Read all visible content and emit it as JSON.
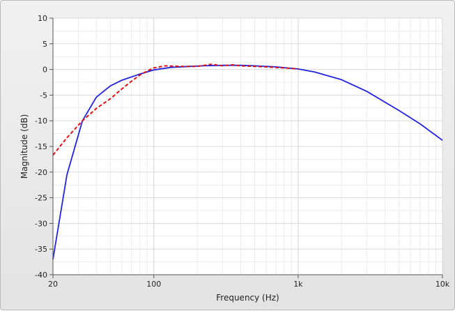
{
  "chart_data": {
    "type": "line",
    "title": "",
    "xlabel": "Frequency (Hz)",
    "ylabel": "Magnitude (dB)",
    "xscale": "log",
    "xlim": [
      20,
      10000
    ],
    "ylim": [
      -40,
      10
    ],
    "xticks": [
      {
        "value": 20,
        "label": "20"
      },
      {
        "value": 100,
        "label": "100"
      },
      {
        "value": 1000,
        "label": "1k"
      },
      {
        "value": 10000,
        "label": "10k"
      }
    ],
    "yticks": [
      10,
      5,
      0,
      -5,
      -10,
      -15,
      -20,
      -25,
      -30,
      -35,
      -40
    ],
    "grid": true,
    "legend": "none",
    "series": [
      {
        "color": "#2222dd",
        "style": "solid",
        "x": [
          20,
          25,
          32,
          40,
          50,
          60,
          80,
          100,
          130,
          180,
          220,
          300,
          400,
          500,
          700,
          1000,
          1300,
          2000,
          3000,
          5000,
          7000,
          10000
        ],
        "y": [
          -37,
          -20.5,
          -10,
          -5.4,
          -3.2,
          -2.1,
          -0.9,
          -0.1,
          0.4,
          0.6,
          0.7,
          0.8,
          0.8,
          0.7,
          0.5,
          0.1,
          -0.5,
          -2.0,
          -4.3,
          -8.0,
          -10.6,
          -13.8
        ]
      },
      {
        "color": "#dd1111",
        "style": "dashed",
        "x": [
          20,
          25,
          32,
          40,
          50,
          60,
          70,
          80,
          90,
          100,
          120,
          150,
          200,
          250,
          300,
          350,
          400,
          500,
          600,
          700,
          800,
          900,
          1000
        ],
        "y": [
          -16.7,
          -13.3,
          -10.0,
          -7.6,
          -5.7,
          -3.8,
          -2.3,
          -1.1,
          -0.3,
          0.3,
          0.7,
          0.6,
          0.6,
          1.0,
          0.7,
          0.9,
          0.7,
          0.6,
          0.5,
          0.4,
          0.3,
          0.2,
          0.1
        ]
      }
    ]
  }
}
